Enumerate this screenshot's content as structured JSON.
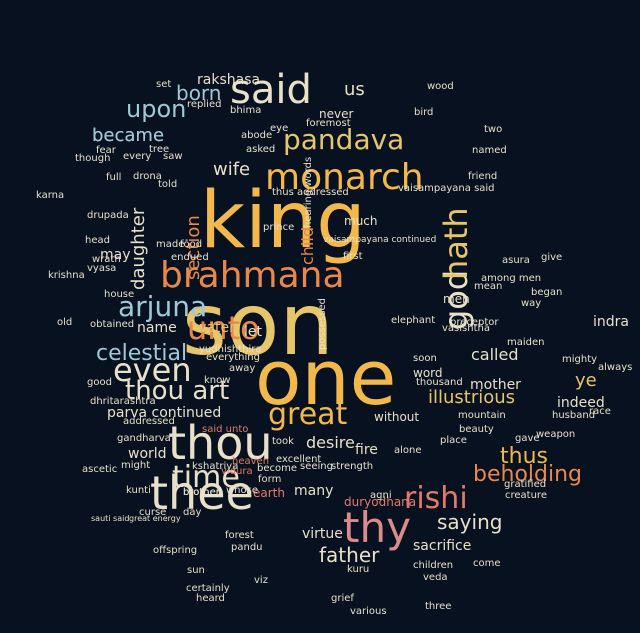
{
  "palette": {
    "background": "#07111f",
    "gold": "#f2b84b",
    "orange": "#e8884a",
    "salmon": "#e27a6b",
    "pink": "#d98c8a",
    "cream": "#e8e0c8",
    "light_blue": "#9fc9d6",
    "sky_blue": "#6aa9c9",
    "teal": "#5fb0a6",
    "mint": "#a8d8b8",
    "yellow": "#e7c56a",
    "red": "#c94f4a",
    "steel": "#6d8fa6",
    "dim": "#4c6b80"
  },
  "words": [
    {
      "text": "king",
      "color": "#f2b84b"
    },
    {
      "text": "son",
      "color": "#e7c56a"
    },
    {
      "text": "one",
      "color": "#f2b84b"
    },
    {
      "text": "brahmana",
      "color": "#e8884a"
    },
    {
      "text": "thou",
      "color": "#e8e0c8"
    },
    {
      "text": "thee",
      "color": "#e8e0c8"
    },
    {
      "text": "thy",
      "color": "#d98c8a"
    },
    {
      "text": "said",
      "color": "#e8e0c8"
    },
    {
      "text": "monarch",
      "color": "#f2b84b"
    },
    {
      "text": "pandava",
      "color": "#e7c56a"
    },
    {
      "text": "unto",
      "color": "#e8884a"
    },
    {
      "text": "god",
      "color": "#e8e0c8"
    },
    {
      "text": "hath",
      "color": "#e7c56a"
    },
    {
      "text": "time",
      "color": "#e8e0c8"
    },
    {
      "text": "rishi",
      "color": "#e27a6b"
    },
    {
      "text": "great",
      "color": "#f2b84b"
    },
    {
      "text": "even",
      "color": "#e8e0c8"
    },
    {
      "text": "arjuna",
      "color": "#9fc9d6"
    },
    {
      "text": "thou art",
      "color": "#e8e0c8"
    },
    {
      "text": "upon",
      "color": "#9fc9d6"
    },
    {
      "text": "celestial",
      "color": "#9fc9d6"
    },
    {
      "text": "thus",
      "color": "#f2b84b"
    },
    {
      "text": "beholding",
      "color": "#e8884a"
    },
    {
      "text": "saying",
      "color": "#e8e0c8"
    },
    {
      "text": "father",
      "color": "#e8e0c8"
    },
    {
      "text": "illustrious",
      "color": "#e7c56a"
    },
    {
      "text": "ye",
      "color": "#e7c56a"
    },
    {
      "text": "born",
      "color": "#9fc9d6"
    },
    {
      "text": "us",
      "color": "#e8e0c8"
    },
    {
      "text": "became",
      "color": "#9fc9d6"
    },
    {
      "text": "wife",
      "color": "#e8e0c8"
    },
    {
      "text": "section",
      "color": "#e8884a"
    },
    {
      "text": "daughter",
      "color": "#e8e0c8"
    },
    {
      "text": "rakshasa",
      "color": "#e8e0c8"
    },
    {
      "text": "child",
      "color": "#e8884a"
    },
    {
      "text": "parva continued",
      "color": "#e8e0c8"
    },
    {
      "text": "world",
      "color": "#e8e0c8"
    },
    {
      "text": "desire",
      "color": "#e8e0c8"
    },
    {
      "text": "fire",
      "color": "#e8e0c8"
    },
    {
      "text": "called",
      "color": "#e8e0c8"
    },
    {
      "text": "indra",
      "color": "#e8e0c8"
    },
    {
      "text": "mother",
      "color": "#e8e0c8"
    },
    {
      "text": "indeed",
      "color": "#e8e0c8"
    },
    {
      "text": "many",
      "color": "#e8e0c8"
    },
    {
      "text": "sacrifice",
      "color": "#e8e0c8"
    },
    {
      "text": "virtue",
      "color": "#e8e0c8"
    },
    {
      "text": "name",
      "color": "#e8e0c8"
    },
    {
      "text": "water",
      "color": "#e7c56a"
    },
    {
      "text": "let",
      "color": "#e8e0c8"
    },
    {
      "text": "may",
      "color": "#e8e0c8"
    },
    {
      "text": "krishna",
      "color": "#e8e0c8"
    },
    {
      "text": "kunti",
      "color": "#e8e0c8"
    },
    {
      "text": "brother",
      "color": "#e8e0c8"
    },
    {
      "text": "earth",
      "color": "#e27a6b"
    },
    {
      "text": "men",
      "color": "#e8e0c8"
    },
    {
      "text": "word",
      "color": "#e8e0c8"
    },
    {
      "text": "much",
      "color": "#e8e0c8"
    },
    {
      "text": "vaisampayana continued",
      "color": "#e8e0c8"
    },
    {
      "text": "vaisampayana said",
      "color": "#e8e0c8"
    },
    {
      "text": "beauty",
      "color": "#e8e0c8"
    },
    {
      "text": "mountain",
      "color": "#e8e0c8"
    },
    {
      "text": "without",
      "color": "#e8e0c8"
    },
    {
      "text": "alone",
      "color": "#e8e0c8"
    },
    {
      "text": "friend",
      "color": "#e8e0c8"
    },
    {
      "text": "bhima",
      "color": "#e8e0c8"
    },
    {
      "text": "never",
      "color": "#e8e0c8"
    },
    {
      "text": "foremost",
      "color": "#e8e0c8"
    },
    {
      "text": "drona",
      "color": "#e8e0c8"
    },
    {
      "text": "full",
      "color": "#e8e0c8"
    },
    {
      "text": "told",
      "color": "#e8e0c8"
    },
    {
      "text": "saw",
      "color": "#e8e0c8"
    },
    {
      "text": "every",
      "color": "#e8e0c8"
    },
    {
      "text": "though",
      "color": "#e8e0c8"
    },
    {
      "text": "fear",
      "color": "#e8e0c8"
    },
    {
      "text": "karna",
      "color": "#e8e0c8"
    },
    {
      "text": "drupada",
      "color": "#e8e0c8"
    },
    {
      "text": "head",
      "color": "#e8e0c8"
    },
    {
      "text": "house",
      "color": "#e8e0c8"
    },
    {
      "text": "old",
      "color": "#e8e0c8"
    },
    {
      "text": "obtained",
      "color": "#e8e0c8"
    },
    {
      "text": "heaven",
      "color": "#e27a6b"
    },
    {
      "text": "come",
      "color": "#e8e0c8"
    },
    {
      "text": "sun",
      "color": "#e8e0c8"
    },
    {
      "text": "forest",
      "color": "#e8e0c8"
    },
    {
      "text": "pandu",
      "color": "#e8e0c8"
    },
    {
      "text": "veda",
      "color": "#e8e0c8"
    },
    {
      "text": "heard",
      "color": "#e8e0c8"
    },
    {
      "text": "various",
      "color": "#e8e0c8"
    },
    {
      "text": "three",
      "color": "#e8e0c8"
    },
    {
      "text": "asura",
      "color": "#e8e0c8"
    },
    {
      "text": "give",
      "color": "#e8e0c8"
    },
    {
      "text": "began",
      "color": "#e8e0c8"
    },
    {
      "text": "way",
      "color": "#e8e0c8"
    },
    {
      "text": "gave",
      "color": "#e8e0c8"
    },
    {
      "text": "seeing",
      "color": "#e8e0c8"
    },
    {
      "text": "strength",
      "color": "#e8e0c8"
    },
    {
      "text": "excellent",
      "color": "#e8e0c8"
    },
    {
      "text": "took",
      "color": "#e8e0c8"
    },
    {
      "text": "dhritarashtra",
      "color": "#e8e0c8"
    },
    {
      "text": "gandharva",
      "color": "#e8e0c8"
    },
    {
      "text": "addressed",
      "color": "#e8e0c8"
    },
    {
      "text": "might",
      "color": "#e8e0c8"
    },
    {
      "text": "curse",
      "color": "#e8e0c8"
    },
    {
      "text": "day",
      "color": "#e8e0c8"
    },
    {
      "text": "viz",
      "color": "#e8e0c8"
    },
    {
      "text": "children",
      "color": "#e8e0c8"
    },
    {
      "text": "weapon",
      "color": "#e8e0c8"
    },
    {
      "text": "husband",
      "color": "#e8e0c8"
    },
    {
      "text": "place",
      "color": "#e8e0c8"
    },
    {
      "text": "wood",
      "color": "#e8e0c8"
    },
    {
      "text": "bird",
      "color": "#e8e0c8"
    },
    {
      "text": "tree",
      "color": "#e8e0c8"
    },
    {
      "text": "asked",
      "color": "#e8e0c8"
    },
    {
      "text": "abode",
      "color": "#e8e0c8"
    },
    {
      "text": "eye",
      "color": "#e8e0c8"
    },
    {
      "text": "prince",
      "color": "#e8e0c8"
    },
    {
      "text": "replied",
      "color": "#e8e0c8"
    },
    {
      "text": "set",
      "color": "#e8e0c8"
    },
    {
      "text": "became",
      "color": "#9fc9d6"
    },
    {
      "text": "two",
      "color": "#e8e0c8"
    },
    {
      "text": "named",
      "color": "#e8e0c8"
    },
    {
      "text": "maiden",
      "color": "#e8e0c8"
    },
    {
      "text": "soon",
      "color": "#e8e0c8"
    },
    {
      "text": "thousand",
      "color": "#e8e0c8"
    },
    {
      "text": "race",
      "color": "#e8e0c8"
    },
    {
      "text": "yudhishthira",
      "color": "#e8e0c8"
    },
    {
      "text": "everything",
      "color": "#e8e0c8"
    },
    {
      "text": "good",
      "color": "#e8e0c8"
    },
    {
      "text": "know",
      "color": "#e8e0c8"
    },
    {
      "text": "away",
      "color": "#e8e0c8"
    },
    {
      "text": "duryodhana",
      "color": "#e27a6b"
    },
    {
      "text": "agni",
      "color": "#e8e0c8"
    },
    {
      "text": "kuru",
      "color": "#e8e0c8"
    },
    {
      "text": "whose",
      "color": "#e8e0c8"
    },
    {
      "text": "mighty",
      "color": "#e8e0c8"
    },
    {
      "text": "always",
      "color": "#e8e0c8"
    },
    {
      "text": "among men",
      "color": "#e8e0c8"
    },
    {
      "text": "mean",
      "color": "#e8e0c8"
    },
    {
      "text": "preceptor",
      "color": "#e8e0c8"
    },
    {
      "text": "vasishtha",
      "color": "#e8e0c8"
    },
    {
      "text": "elephant",
      "color": "#e8e0c8"
    },
    {
      "text": "first",
      "color": "#e8e0c8"
    },
    {
      "text": "brother",
      "color": "#e8e0c8"
    },
    {
      "text": "wrath",
      "color": "#e8e0c8"
    },
    {
      "text": "vyasa",
      "color": "#e8e0c8"
    },
    {
      "text": "made",
      "color": "#e8e0c8"
    },
    {
      "text": "food",
      "color": "#e8e0c8"
    },
    {
      "text": "endued",
      "color": "#e8e0c8"
    },
    {
      "text": "thus addressed",
      "color": "#e8e0c8"
    },
    {
      "text": "hearing words",
      "color": "#e8e0c8"
    },
    {
      "text": "possessed",
      "color": "#e8e0c8"
    },
    {
      "text": "creature",
      "color": "#e8e0c8"
    },
    {
      "text": "gratified",
      "color": "#e8e0c8"
    },
    {
      "text": "ascetic",
      "color": "#e8e0c8"
    },
    {
      "text": "offspring",
      "color": "#e8e0c8"
    },
    {
      "text": "form",
      "color": "#e8e0c8"
    },
    {
      "text": "become",
      "color": "#e8e0c8"
    },
    {
      "text": "certainly",
      "color": "#e8e0c8"
    },
    {
      "text": "grief",
      "color": "#e8e0c8"
    },
    {
      "text": "said unto",
      "color": "#e27a6b"
    },
    {
      "text": "kshatriya",
      "color": "#e8e0c8"
    },
    {
      "text": "vidura",
      "color": "#e27a6b"
    },
    {
      "text": "great energy",
      "color": "#e8e0c8"
    },
    {
      "text": "sauti said",
      "color": "#e8e0c8"
    }
  ]
}
